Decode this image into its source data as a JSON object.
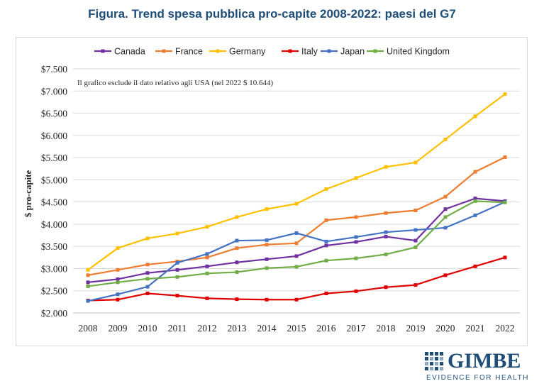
{
  "figure_title": "Figura. Trend spesa pubblica pro-capite 2008-2022: paesi del G7",
  "logo": {
    "name": "GIMBE",
    "tagline": "EVIDENCE FOR HEALTH"
  },
  "chart_data": {
    "type": "line",
    "title": "Figura. Trend spesa pubblica pro-capite 2008-2022: paesi del G7",
    "annotation": "Il grafico esclude il dato relativo agli USA (nel 2022 $ 10.644)",
    "xlabel": "",
    "ylabel": "$ pro-capite",
    "ylim": [
      2000,
      7500
    ],
    "yticks": [
      2000,
      2500,
      3000,
      3500,
      4000,
      4500,
      5000,
      5500,
      6000,
      6500,
      7000,
      7500
    ],
    "ytick_labels": [
      "$2.000",
      "$2.500",
      "$3.000",
      "$3.500",
      "$4.000",
      "$4.500",
      "$5.000",
      "$5.500",
      "$6.000",
      "$6.500",
      "$7.000",
      "$7.500"
    ],
    "grid": true,
    "legend_position": "top",
    "categories": [
      "2008",
      "2009",
      "2010",
      "2011",
      "2012",
      "2013",
      "2014",
      "2015",
      "2016",
      "2017",
      "2018",
      "2019",
      "2020",
      "2021",
      "2022"
    ],
    "series": [
      {
        "name": "Canada",
        "color": "#7030a0",
        "marker": "square",
        "values": [
          2690,
          2760,
          2900,
          2970,
          3050,
          3140,
          3210,
          3280,
          3520,
          3600,
          3720,
          3630,
          4340,
          4580,
          4520
        ]
      },
      {
        "name": "France",
        "color": "#ed7d31",
        "marker": "square",
        "values": [
          2850,
          2970,
          3090,
          3160,
          3250,
          3460,
          3540,
          3570,
          4090,
          4160,
          4250,
          4310,
          4620,
          5180,
          5510
        ]
      },
      {
        "name": "Germany",
        "color": "#ffc000",
        "marker": "square",
        "values": [
          2970,
          3460,
          3680,
          3790,
          3940,
          4160,
          4340,
          4460,
          4790,
          5040,
          5290,
          5390,
          5910,
          6430,
          6930
        ]
      },
      {
        "name": "Italy",
        "color": "#e00000",
        "marker": "square",
        "values": [
          2280,
          2300,
          2440,
          2390,
          2330,
          2310,
          2300,
          2300,
          2440,
          2490,
          2580,
          2630,
          2850,
          3050,
          3250
        ]
      },
      {
        "name": "Japan",
        "color": "#4472c4",
        "marker": "square",
        "values": [
          2270,
          2420,
          2590,
          3130,
          3330,
          3630,
          3640,
          3800,
          3610,
          3710,
          3820,
          3870,
          3920,
          4200,
          4500
        ]
      },
      {
        "name": "United Kingdom",
        "color": "#70ad47",
        "marker": "square",
        "values": [
          2600,
          2690,
          2770,
          2810,
          2890,
          2920,
          3010,
          3040,
          3180,
          3230,
          3320,
          3480,
          4160,
          4520,
          4490
        ]
      }
    ]
  }
}
